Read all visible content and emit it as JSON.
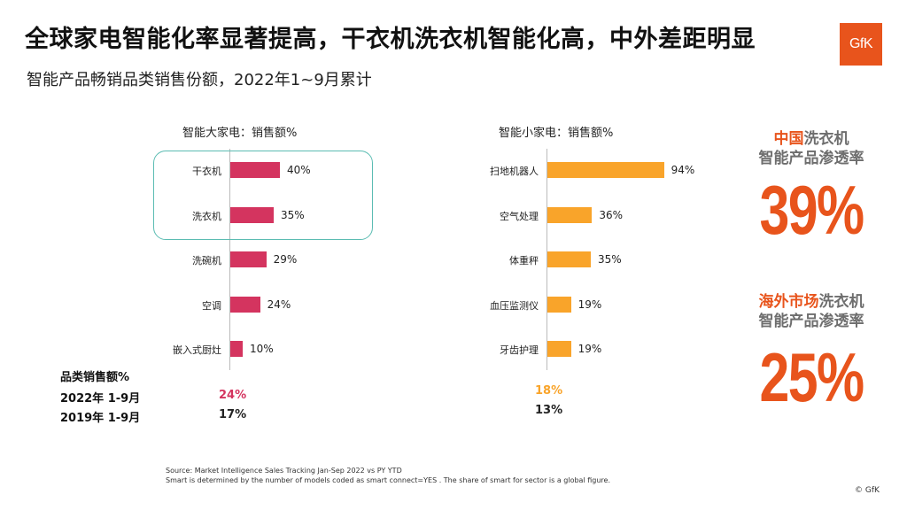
{
  "header": {
    "title": "全球家电智能化率显著提高，干衣机洗衣机智能化高，中外差距明显",
    "subtitle": "智能产品畅销品类销售份额，2022年1~9月累计",
    "logo": "GfK"
  },
  "chart_data": [
    {
      "type": "bar",
      "orientation": "horizontal",
      "title": "智能大家电：销售额%",
      "categories": [
        "干衣机",
        "洗衣机",
        "洗碗机",
        "空调",
        "嵌入式厨灶"
      ],
      "values": [
        40,
        35,
        29,
        24,
        10
      ],
      "value_labels": [
        "40%",
        "35%",
        "29%",
        "24%",
        "10%"
      ],
      "unit": "%",
      "xlim": [
        0,
        100
      ],
      "color": "#d4345f",
      "highlighted_categories": [
        "干衣机",
        "洗衣机"
      ]
    },
    {
      "type": "bar",
      "orientation": "horizontal",
      "title": "智能小家电：销售额%",
      "categories": [
        "扫地机器人",
        "空气处理",
        "体重秤",
        "血压监测仪",
        "牙齿护理"
      ],
      "values": [
        94,
        36,
        35,
        19,
        19
      ],
      "value_labels": [
        "94%",
        "36%",
        "35%",
        "19%",
        "19%"
      ],
      "unit": "%",
      "xlim": [
        0,
        100
      ],
      "color": "#f9a42a"
    }
  ],
  "summary": {
    "heading": "品类销售额%",
    "rows": [
      {
        "label": "2022年 1-9月",
        "big": "24%",
        "small": "18%"
      },
      {
        "label": "2019年 1-9月",
        "big": "17%",
        "small": "13%"
      }
    ],
    "highlight_colors": {
      "big": "#d4345f",
      "small": "#f9a42a"
    }
  },
  "kpis": [
    {
      "label_highlight": "中国",
      "label_rest": "洗衣机",
      "label_line2": "智能产品渗透率",
      "value": "39%"
    },
    {
      "label_highlight": "海外市场",
      "label_rest": "洗衣机",
      "label_line2": "智能产品渗透率",
      "value": "25%"
    }
  ],
  "footer": {
    "source": "Source: Market Intelligence Sales Tracking Jan-Sep 2022 vs PY YTD",
    "note": "Smart is determined by the  number of models coded as smart connect=YES . The share of smart for sector is a global figure.",
    "copyright": "© GfK"
  },
  "colors": {
    "accent": "#e8541c",
    "kpi_label_gray": "#6e6e6e",
    "highlight_box": "#5bbcb2"
  }
}
